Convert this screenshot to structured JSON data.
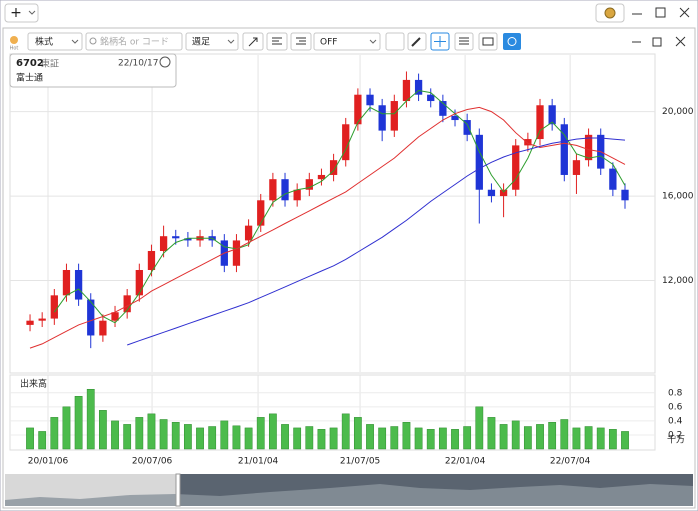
{
  "toolbar": {
    "add": "+",
    "market": "株式",
    "search_placeholder": "銘柄名 or コード",
    "period": "週足",
    "overlay": "OFF",
    "hot": "Hot"
  },
  "info": {
    "code": "6702",
    "exchange": "東証",
    "date": "22/10/17",
    "name": "富士通"
  },
  "chart_data": {
    "type": "candlestick",
    "open": [
      9900,
      10100,
      10200,
      11300,
      12500,
      11100,
      9400,
      10100,
      10500,
      11300,
      12500,
      13400,
      14100,
      14000,
      13900,
      14100,
      13900,
      12700,
      13900,
      14600,
      15800,
      16800,
      15800,
      16300,
      16800,
      17000,
      17700,
      19400,
      20800,
      20300,
      19100,
      20500,
      21500,
      20800,
      20500,
      19800,
      19600,
      18900,
      16300,
      16000,
      16300,
      18400,
      18700,
      20300,
      19400,
      17000,
      17700,
      18900,
      17300,
      16300
    ],
    "high": [
      10400,
      10500,
      11600,
      12800,
      12800,
      11400,
      10400,
      10800,
      11600,
      12800,
      13700,
      14600,
      14400,
      14300,
      14400,
      14400,
      14200,
      14200,
      14900,
      16100,
      17100,
      17100,
      16600,
      17100,
      17300,
      18000,
      19700,
      21100,
      21100,
      20600,
      20800,
      21900,
      21800,
      21100,
      20800,
      20100,
      19900,
      19200,
      16600,
      16600,
      18700,
      19000,
      20600,
      20600,
      19700,
      18000,
      19200,
      19200,
      17600,
      16600
    ],
    "low": [
      9600,
      9800,
      9900,
      11000,
      10800,
      8800,
      9100,
      9800,
      10200,
      11000,
      12200,
      13100,
      13700,
      13600,
      13600,
      13600,
      12400,
      12400,
      13600,
      14300,
      15500,
      15500,
      15500,
      16000,
      16500,
      16700,
      17400,
      19100,
      20000,
      18600,
      18800,
      20200,
      20500,
      20200,
      19500,
      19300,
      18600,
      14700,
      15700,
      15000,
      16000,
      18100,
      18400,
      19100,
      16700,
      16100,
      17400,
      17000,
      16000,
      15400
    ],
    "close": [
      10100,
      10200,
      11300,
      12500,
      11100,
      9400,
      10100,
      10500,
      11300,
      12500,
      13400,
      14100,
      14000,
      13900,
      14100,
      13900,
      12700,
      13900,
      14600,
      15800,
      16800,
      15800,
      16300,
      16800,
      17000,
      17700,
      19400,
      20800,
      20300,
      19100,
      20500,
      21500,
      20800,
      20500,
      19800,
      19600,
      18900,
      16300,
      16000,
      16300,
      18400,
      18700,
      20300,
      19400,
      17000,
      17700,
      18900,
      17300,
      16300,
      15800
    ],
    "up_color": "#e02020",
    "down_color": "#1f35d6",
    "series": [
      {
        "color": "#2e9e2e",
        "values": [
          null,
          null,
          10500,
          11300,
          11600,
          11000,
          10300,
          10000,
          10600,
          11400,
          12400,
          13300,
          13800,
          14000,
          14000,
          14000,
          13600,
          13500,
          13700,
          14700,
          15700,
          16100,
          16300,
          16400,
          16700,
          17200,
          18200,
          19500,
          20200,
          19900,
          19900,
          20500,
          21000,
          20900,
          20400,
          19900,
          19400,
          18100,
          17000,
          16200,
          16800,
          17800,
          19100,
          19500,
          18900,
          18000,
          17800,
          17900,
          17500,
          16500
        ]
      },
      {
        "color": "#e03030",
        "values": [
          8800,
          9000,
          9300,
          9600,
          9900,
          10100,
          10300,
          10500,
          10800,
          11100,
          11500,
          11800,
          12100,
          12400,
          12700,
          13000,
          13300,
          13500,
          13800,
          14100,
          14400,
          14700,
          15000,
          15300,
          15600,
          15900,
          16200,
          16600,
          17000,
          17400,
          17800,
          18300,
          18800,
          19200,
          19600,
          19900,
          20100,
          20200,
          20000,
          19600,
          19000,
          18500,
          18300,
          18400,
          18500,
          18400,
          18200,
          18100,
          17800,
          17500
        ]
      },
      {
        "color": "#3030d0",
        "values": [
          null,
          null,
          null,
          null,
          null,
          null,
          null,
          null,
          8950,
          9150,
          9350,
          9550,
          9750,
          9950,
          10150,
          10350,
          10550,
          10750,
          10950,
          11200,
          11450,
          11700,
          11950,
          12200,
          12450,
          12700,
          13000,
          13350,
          13700,
          14050,
          14450,
          14850,
          15300,
          15750,
          16150,
          16550,
          16950,
          17300,
          17600,
          17850,
          18050,
          18200,
          18350,
          18500,
          18600,
          18700,
          18750,
          18750,
          18700,
          18650
        ]
      }
    ],
    "ylim": [
      7670,
      22680
    ],
    "yticks": [
      {
        "value": 12000,
        "label": "12,000"
      },
      {
        "value": 16000,
        "label": "16,000"
      },
      {
        "value": 20000,
        "label": "20,000"
      }
    ],
    "xlim": [
      -1.65,
      51.47
    ],
    "xticks": [
      {
        "value": 1.48,
        "label": "20/01/06"
      },
      {
        "value": 10.05,
        "label": "20/07/06"
      },
      {
        "value": 18.78,
        "label": "21/01/04"
      },
      {
        "value": 27.18,
        "label": "21/07/05"
      },
      {
        "value": 35.83,
        "label": "22/01/04"
      },
      {
        "value": 44.48,
        "label": "22/07/04"
      }
    ],
    "grid": true,
    "volume": {
      "title": "出来高",
      "unit": "千万",
      "color": "#4cbb4c",
      "values": [
        0.3,
        0.25,
        0.45,
        0.6,
        0.75,
        0.85,
        0.55,
        0.4,
        0.35,
        0.45,
        0.5,
        0.42,
        0.38,
        0.35,
        0.3,
        0.32,
        0.4,
        0.33,
        0.3,
        0.45,
        0.5,
        0.35,
        0.3,
        0.32,
        0.28,
        0.3,
        0.5,
        0.45,
        0.35,
        0.3,
        0.32,
        0.38,
        0.3,
        0.28,
        0.3,
        0.28,
        0.32,
        0.6,
        0.45,
        0.35,
        0.4,
        0.32,
        0.35,
        0.38,
        0.42,
        0.3,
        0.32,
        0.3,
        0.28,
        0.25
      ],
      "ylim": [
        0,
        1.01
      ],
      "yticks": [
        0.2,
        0.4,
        0.6,
        0.8
      ]
    }
  }
}
